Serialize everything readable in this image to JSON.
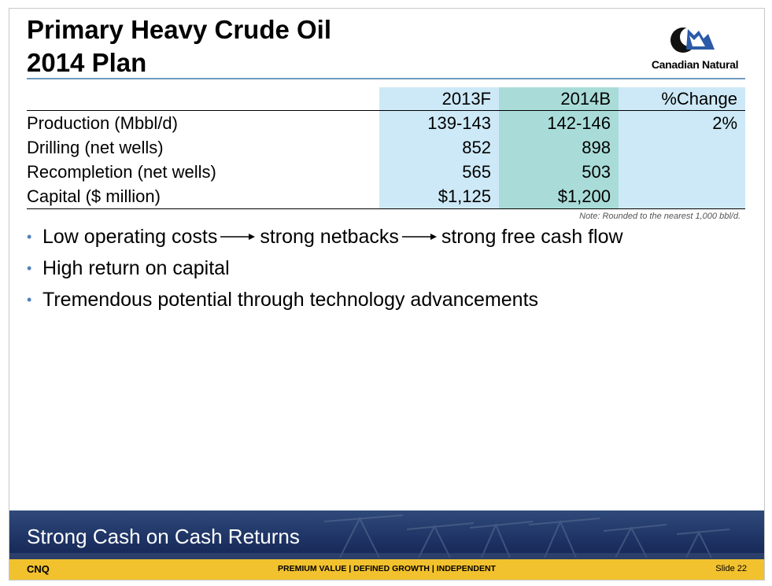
{
  "title": {
    "line1": "Primary Heavy Crude Oil",
    "line2": "2014 Plan"
  },
  "logo": {
    "text": "Canadian Natural"
  },
  "table": {
    "headers": [
      "",
      "2013F",
      "2014B",
      "%Change"
    ],
    "rows": [
      {
        "label": "Production (Mbbl/d)",
        "v2013": "139-143",
        "v2014": "142-146",
        "change": "2%"
      },
      {
        "label": "Drilling (net wells)",
        "v2013": "852",
        "v2014": "898",
        "change": ""
      },
      {
        "label": "Recompletion (net wells)",
        "v2013": "565",
        "v2014": "503",
        "change": ""
      },
      {
        "label": "Capital ($ million)",
        "v2013": "$1,125",
        "v2014": "$1,200",
        "change": ""
      }
    ],
    "note": "Note: Rounded to the nearest 1,000 bbl/d."
  },
  "bullets": {
    "b1": {
      "part1": "Low operating costs",
      "part2": "strong netbacks",
      "part3": "strong free cash flow"
    },
    "b2": "High return on capital",
    "b3": "Tremendous potential through technology advancements"
  },
  "banner": {
    "text": "Strong Cash on Cash Returns"
  },
  "footer": {
    "left": "CNQ",
    "center": "PREMIUM VALUE  |  DEFINED GROWTH  |  INDEPENDENT",
    "right": "Slide 22"
  },
  "colors": {
    "accent_blue": "#4f81bd",
    "col_light": "#cde9f7",
    "col_teal": "#a9dcd8",
    "footer_gold": "#f2c12e",
    "banner_navy": "#1f3566"
  }
}
